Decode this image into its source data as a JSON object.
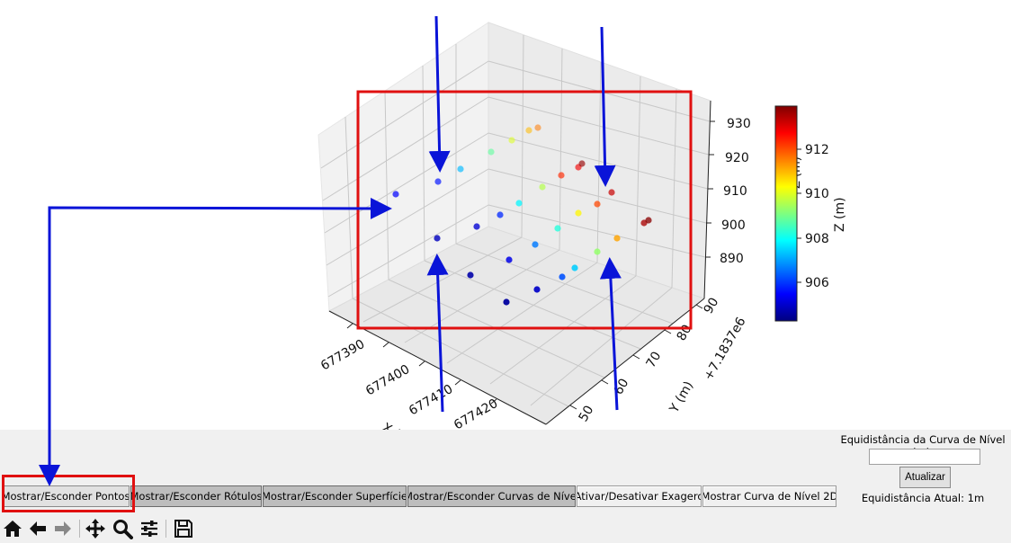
{
  "plot": {
    "x_axis": {
      "label": "X (m)",
      "ticks": [
        "677390",
        "677400",
        "677410",
        "677420"
      ]
    },
    "y_axis": {
      "label": "Y (m)",
      "offset": "+7.1837e6",
      "ticks": [
        "50",
        "60",
        "70",
        "80",
        "90"
      ]
    },
    "z_axis": {
      "label": "Z (m)",
      "ticks": [
        "890",
        "900",
        "910",
        "920",
        "930"
      ]
    },
    "colorbar": {
      "label": "Z (m)",
      "ticks": [
        "906",
        "908",
        "910",
        "912"
      ],
      "colormap": "jet"
    },
    "points_color_values": [
      904.5,
      904.6,
      904.8,
      904.9,
      905.0,
      905.2,
      905.4,
      905.6,
      905.8,
      906.2,
      906.6,
      907.2,
      907.4,
      907.8,
      908.2,
      908.8,
      909.3,
      909.6,
      910.0,
      910.4,
      911.0,
      911.2,
      911.6,
      912.1,
      912.4,
      912.9,
      913.3,
      913.6,
      913.8,
      913.9
    ]
  },
  "panel": {
    "buttons": [
      {
        "label": "Mostrar/Esconder Pontos",
        "state": "normal"
      },
      {
        "label": "Mostrar/Esconder Rótulos",
        "state": "pressed"
      },
      {
        "label": "Mostrar/Esconder Superfície",
        "state": "pressed"
      },
      {
        "label": "Mostrar/Esconder Curvas de Nível",
        "state": "pressed"
      },
      {
        "label": "Ativar/Desativar Exagero",
        "state": "raised"
      },
      {
        "label": "Mostrar Curva de Nível 2D",
        "state": "raised"
      }
    ],
    "contour": {
      "label": "Equidistância da Curva de Nível (m):",
      "input_value": "",
      "update_label": "Atualizar",
      "current_text": "Equidistância Atual: 1m"
    }
  },
  "toolbar": {
    "tools": [
      "home-icon",
      "back-arrow-icon",
      "forward-arrow-icon",
      "pan-icon",
      "zoom-icon",
      "configure-subplots-icon",
      "save-icon"
    ]
  },
  "annotations": {
    "highlight_color": "#e01010",
    "arrow_color": "#0a14d8"
  }
}
